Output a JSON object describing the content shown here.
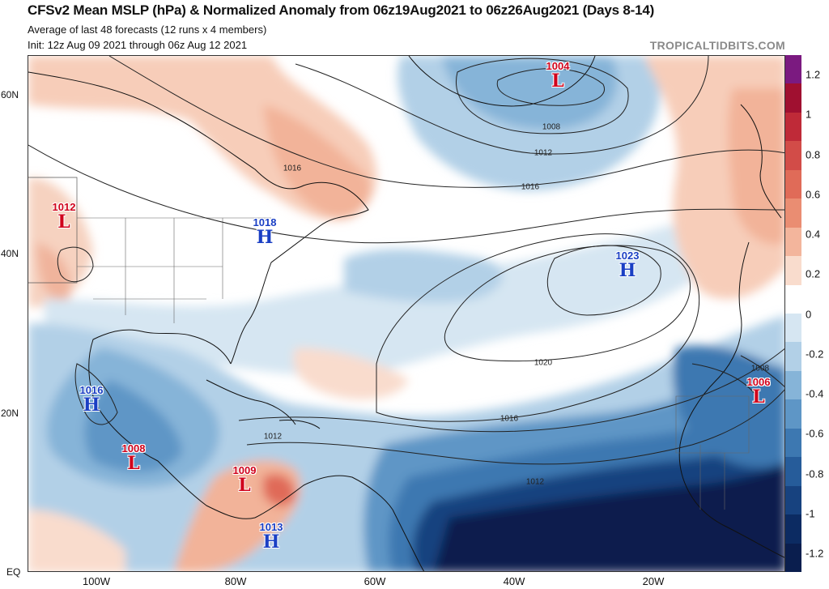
{
  "header": {
    "title": "CFSv2 Mean MSLP (hPa) & Normalized Anomaly from 06z19Aug2021 to 06z26Aug2021 (Days 8-14)",
    "subtitle1": "Average of last 48 forecasts (12 runs x 4 members)",
    "subtitle2": "Init: 12z Aug 09 2021 through 06z Aug 12 2021",
    "brand": "TROPICALTIDBITS.COM"
  },
  "axes": {
    "lat_labels": [
      "60N",
      "40N",
      "20N",
      "EQ"
    ],
    "lon_labels": [
      "100W",
      "80W",
      "60W",
      "40W",
      "20W"
    ]
  },
  "colorbar": {
    "ticks": [
      "1.2",
      "1",
      "0.8",
      "0.6",
      "0.4",
      "0.2",
      "0",
      "-0.2",
      "-0.4",
      "-0.6",
      "-0.8",
      "-1",
      "-1.2"
    ],
    "colors": [
      "#7b1a80",
      "#a01030",
      "#bf2a38",
      "#d24c48",
      "#e06b58",
      "#ea8d72",
      "#f3b59c",
      "#f9dccd",
      "#ffffff",
      "#d6e6f2",
      "#b2d0e7",
      "#86b4d8",
      "#5e96c6",
      "#3d78b1",
      "#265c9a",
      "#17427f",
      "#0c2b62",
      "#0a1e4e"
    ]
  },
  "systems": [
    {
      "type": "low",
      "symbol": "L",
      "value": "1004"
    },
    {
      "type": "low",
      "symbol": "L",
      "value": "1012"
    },
    {
      "type": "high",
      "symbol": "H",
      "value": "1018"
    },
    {
      "type": "high",
      "symbol": "H",
      "value": "1023"
    },
    {
      "type": "high",
      "symbol": "H",
      "value": "1016"
    },
    {
      "type": "low",
      "symbol": "L",
      "value": "1008"
    },
    {
      "type": "low",
      "symbol": "L",
      "value": "1009"
    },
    {
      "type": "high",
      "symbol": "H",
      "value": "1013"
    },
    {
      "type": "low",
      "symbol": "L",
      "value": "1006"
    }
  ],
  "contour_labels": [
    "1008",
    "1012",
    "1016",
    "1016",
    "1020",
    "1016",
    "1012",
    "1012",
    "1008"
  ]
}
